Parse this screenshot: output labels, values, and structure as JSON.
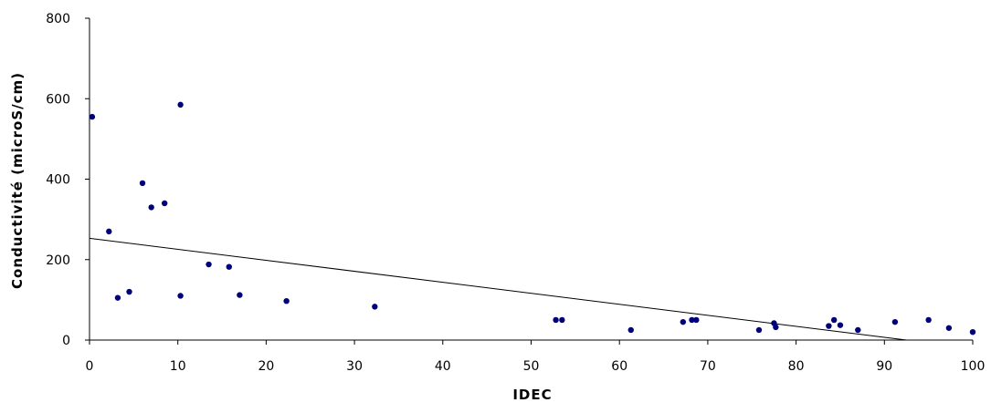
{
  "chart_data": {
    "type": "scatter",
    "title": "",
    "xlabel": "IDEC",
    "ylabel": "Conductivité (microS/cm)",
    "xlim": [
      0,
      100
    ],
    "ylim": [
      0,
      800
    ],
    "x_ticks": [
      0,
      10,
      20,
      30,
      40,
      50,
      60,
      70,
      80,
      90,
      100
    ],
    "y_ticks": [
      0,
      200,
      400,
      600,
      800
    ],
    "x_tick_labels": [
      "0",
      "10",
      "20",
      "30",
      "40",
      "50",
      "60",
      "70",
      "80",
      "90",
      "100"
    ],
    "y_tick_labels": [
      "0",
      "200",
      "400",
      "600",
      "800"
    ],
    "grid": false,
    "legend": "none",
    "colors": {
      "points": "#00007a",
      "trendline": "#000000",
      "axes": "#000000"
    },
    "series": [
      {
        "points": [
          {
            "x": 0.3,
            "y": 555
          },
          {
            "x": 2.2,
            "y": 270
          },
          {
            "x": 3.2,
            "y": 105
          },
          {
            "x": 4.5,
            "y": 120
          },
          {
            "x": 6.0,
            "y": 390
          },
          {
            "x": 7.0,
            "y": 330
          },
          {
            "x": 8.5,
            "y": 340
          },
          {
            "x": 10.3,
            "y": 585
          },
          {
            "x": 10.3,
            "y": 110
          },
          {
            "x": 13.5,
            "y": 188
          },
          {
            "x": 15.8,
            "y": 182
          },
          {
            "x": 17.0,
            "y": 112
          },
          {
            "x": 22.3,
            "y": 97
          },
          {
            "x": 32.3,
            "y": 83
          },
          {
            "x": 52.8,
            "y": 50
          },
          {
            "x": 53.5,
            "y": 50
          },
          {
            "x": 61.3,
            "y": 25
          },
          {
            "x": 67.2,
            "y": 45
          },
          {
            "x": 68.2,
            "y": 50
          },
          {
            "x": 68.7,
            "y": 50
          },
          {
            "x": 75.8,
            "y": 25
          },
          {
            "x": 77.5,
            "y": 42
          },
          {
            "x": 77.7,
            "y": 32
          },
          {
            "x": 83.7,
            "y": 35
          },
          {
            "x": 84.3,
            "y": 50
          },
          {
            "x": 85.0,
            "y": 37
          },
          {
            "x": 87.0,
            "y": 25
          },
          {
            "x": 91.2,
            "y": 45
          },
          {
            "x": 95.0,
            "y": 50
          },
          {
            "x": 97.3,
            "y": 30
          },
          {
            "x": 100.0,
            "y": 20
          }
        ]
      }
    ],
    "trendline": {
      "type": "linear",
      "points": [
        {
          "x": 0,
          "y": 253
        },
        {
          "x": 92.5,
          "y": 0
        }
      ]
    }
  }
}
